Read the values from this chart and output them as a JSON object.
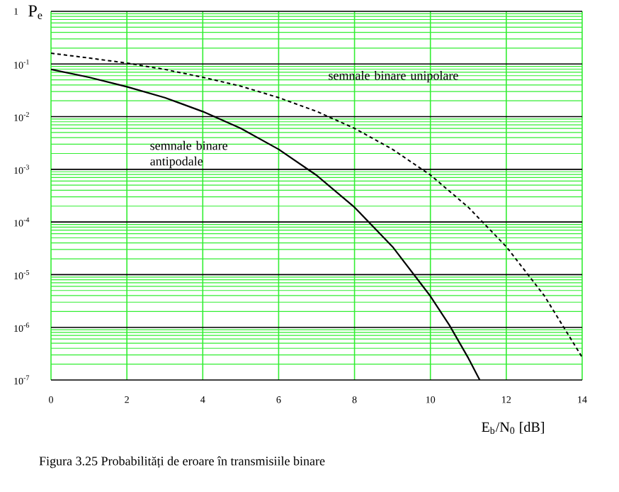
{
  "chart_data": {
    "type": "line",
    "xlabel": "E$_{b}$/N$_{0}$ [dB]",
    "ylabel": "P$_{e}$",
    "series": [
      {
        "name": "semnale binare antipodale",
        "color": "#000000",
        "line_style": "solid",
        "x": [
          0,
          1,
          2,
          3,
          4,
          5,
          6,
          7,
          8,
          9,
          10,
          10.5,
          11,
          11.3
        ],
        "values": [
          0.079,
          0.056,
          0.037,
          0.023,
          0.0125,
          0.006,
          0.0024,
          0.00077,
          0.00019,
          3.4e-05,
          3.9e-06,
          1.1e-06,
          2.6e-07,
          1e-07
        ]
      },
      {
        "name": "semnale binare unipolare",
        "color": "#000000",
        "line_style": "dashed",
        "x": [
          0,
          1,
          2,
          3,
          4,
          5,
          6,
          7,
          8,
          9,
          10,
          11,
          12,
          13,
          14
        ],
        "values": [
          0.16,
          0.13,
          0.104,
          0.079,
          0.056,
          0.038,
          0.023,
          0.0126,
          0.006,
          0.0024,
          0.00078,
          0.00019,
          3.4e-05,
          4e-06,
          2.7e-07
        ]
      }
    ],
    "xlim": [
      0,
      14
    ],
    "ylim": [
      1e-07,
      1
    ],
    "xticks": [
      0,
      2,
      4,
      6,
      8,
      10,
      12,
      14
    ],
    "yticks": [
      {
        "value": 1e-07,
        "label": "10$^{-7}$"
      },
      {
        "value": 2e-07,
        "label": null
      },
      {
        "value": 3e-07,
        "label": null
      },
      {
        "value": 4e-07,
        "label": null
      },
      {
        "value": 5e-07,
        "label": null
      },
      {
        "value": 6e-07,
        "label": null
      },
      {
        "value": 7e-07,
        "label": null
      },
      {
        "value": 8e-07,
        "label": null
      },
      {
        "value": 9e-07,
        "label": null
      },
      {
        "value": 1e-06,
        "label": "10$^{-6}$"
      },
      {
        "value": 2e-06,
        "label": null
      },
      {
        "value": 3e-06,
        "label": null
      },
      {
        "value": 4e-06,
        "label": null
      },
      {
        "value": 5e-06,
        "label": null
      },
      {
        "value": 6e-06,
        "label": null
      },
      {
        "value": 7e-06,
        "label": null
      },
      {
        "value": 8e-06,
        "label": null
      },
      {
        "value": 9e-06,
        "label": null
      },
      {
        "value": 1e-05,
        "label": "10$^{-5}$"
      },
      {
        "value": 2e-05,
        "label": null
      },
      {
        "value": 3e-05,
        "label": null
      },
      {
        "value": 4e-05,
        "label": null
      },
      {
        "value": 5e-05,
        "label": null
      },
      {
        "value": 6e-05,
        "label": null
      },
      {
        "value": 7e-05,
        "label": null
      },
      {
        "value": 8e-05,
        "label": null
      },
      {
        "value": 9e-05,
        "label": null
      },
      {
        "value": 0.0001,
        "label": "10$^{-4}$"
      },
      {
        "value": 0.0002,
        "label": null
      },
      {
        "value": 0.0003,
        "label": null
      },
      {
        "value": 0.0004,
        "label": null
      },
      {
        "value": 0.0005,
        "label": null
      },
      {
        "value": 0.0006,
        "label": null
      },
      {
        "value": 0.0007,
        "label": null
      },
      {
        "value": 0.0008,
        "label": null
      },
      {
        "value": 0.0009,
        "label": null
      },
      {
        "value": 0.001,
        "label": "10$^{-3}$"
      },
      {
        "value": 0.002,
        "label": null
      },
      {
        "value": 0.003,
        "label": null
      },
      {
        "value": 0.004,
        "label": null
      },
      {
        "value": 0.005,
        "label": null
      },
      {
        "value": 0.006,
        "label": null
      },
      {
        "value": 0.007,
        "label": null
      },
      {
        "value": 0.008,
        "label": null
      },
      {
        "value": 0.009,
        "label": null
      },
      {
        "value": 0.01,
        "label": "10$^{-2}$"
      },
      {
        "value": 0.02,
        "label": null
      },
      {
        "value": 0.03,
        "label": null
      },
      {
        "value": 0.04,
        "label": null
      },
      {
        "value": 0.05,
        "label": null
      },
      {
        "value": 0.06,
        "label": null
      },
      {
        "value": 0.07,
        "label": null
      },
      {
        "value": 0.08,
        "label": null
      },
      {
        "value": 0.09,
        "label": null
      },
      {
        "value": 0.1,
        "label": "10$^{-1}$"
      },
      {
        "value": 0.2,
        "label": null
      },
      {
        "value": 0.3,
        "label": null
      },
      {
        "value": 0.4,
        "label": null
      },
      {
        "value": 0.5,
        "label": null
      },
      {
        "value": 0.6,
        "label": null
      },
      {
        "value": 0.7,
        "label": null
      },
      {
        "value": 0.8,
        "label": null
      },
      {
        "value": 0.9,
        "label": null
      },
      1
    ],
    "log": "y",
    "grid": true,
    "marker": "none",
    "annotations": [
      "Figura 3.25 Probabilități de eroare în transmisiile binare"
    ]
  }
}
